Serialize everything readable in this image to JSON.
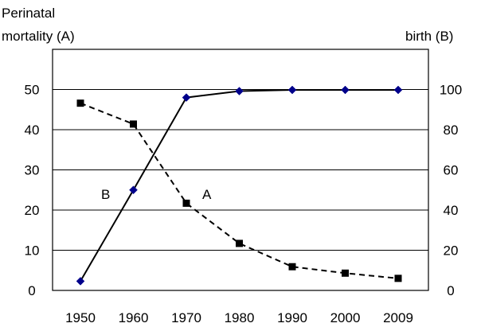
{
  "chart_data": {
    "type": "line",
    "y_left_label_line1": "Perinatal",
    "y_left_label_line2": "mortality (A)",
    "y_right_label": "birth (B)",
    "x": [
      "1950",
      "1960",
      "1970",
      "1980",
      "1990",
      "2000",
      "2009"
    ],
    "y_left_ticks": [
      "0",
      "10",
      "20",
      "30",
      "40",
      "50"
    ],
    "y_right_ticks": [
      "0",
      "20",
      "40",
      "60",
      "80",
      "100"
    ],
    "ylim_left": [
      0,
      60
    ],
    "ylim_right": [
      0,
      120
    ],
    "grid": true,
    "series": [
      {
        "name": "A",
        "axis": "left",
        "line_style": "dashed",
        "marker": "square",
        "color": "#000000",
        "values": [
          46.6,
          41.4,
          21.7,
          11.7,
          5.9,
          4.3,
          3.0
        ]
      },
      {
        "name": "B",
        "axis": "right",
        "line_style": "solid",
        "marker": "diamond",
        "color": "#00008b",
        "line_color": "#000000",
        "values": [
          4.6,
          50.0,
          96.0,
          99.2,
          99.8,
          99.8,
          99.8
        ]
      }
    ]
  }
}
